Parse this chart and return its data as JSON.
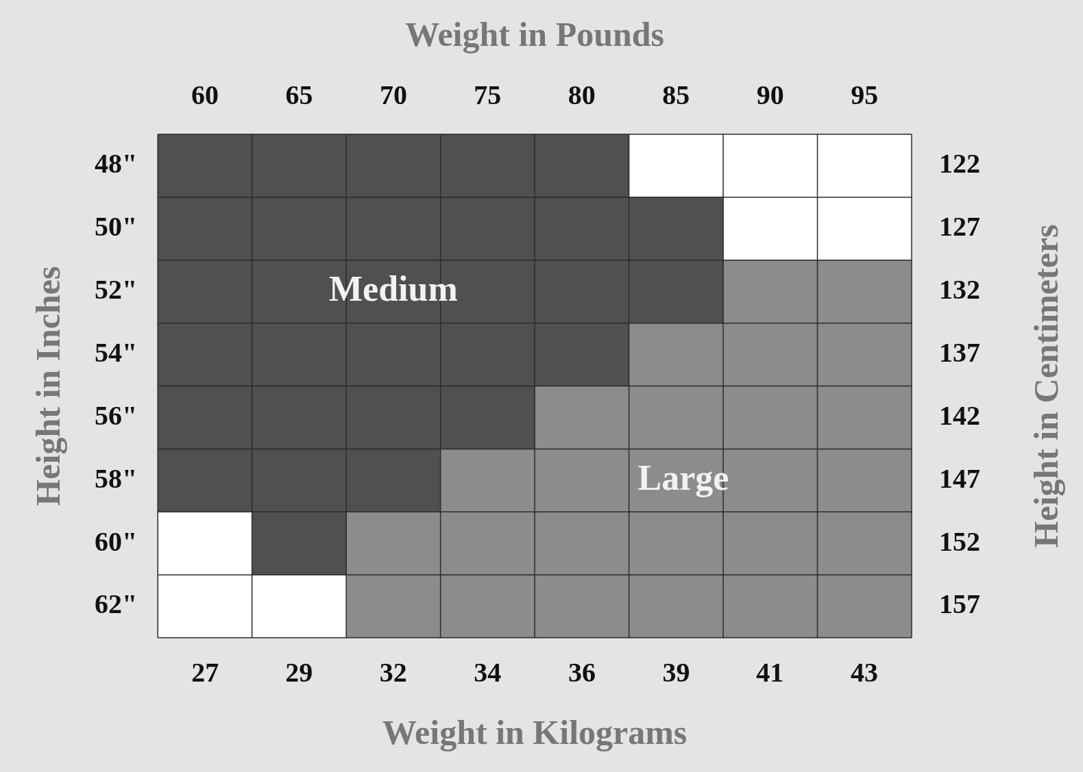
{
  "chart_data": {
    "type": "bar",
    "orientation": "horizontal",
    "xlabel": "Weight in Kilograms",
    "x2label": "Weight in Pounds",
    "ylabel": "Height in Inches",
    "y2label": "Height in Centimeters",
    "categories": [
      "48\"",
      "50\"",
      "52\"",
      "54\"",
      "56\"",
      "58\"",
      "60\"",
      "62\""
    ],
    "y2_categories": [
      "122",
      "127",
      "132",
      "137",
      "142",
      "147",
      "152",
      "157"
    ],
    "x2lim": [
      57.5,
      97.5
    ],
    "x2ticks": [
      60,
      65,
      70,
      75,
      80,
      85,
      90,
      95
    ],
    "xlim": [
      26.08,
      44.23
    ],
    "xticks": [
      {
        "value": 27.22,
        "label": "27"
      },
      {
        "value": 29.48,
        "label": "29"
      },
      {
        "value": 31.75,
        "label": "32"
      },
      {
        "value": 34.02,
        "label": "34"
      },
      {
        "value": 36.29,
        "label": "36"
      },
      {
        "value": 38.56,
        "label": "39"
      },
      {
        "value": 40.82,
        "label": "41"
      },
      {
        "value": 43.09,
        "label": "43"
      }
    ],
    "series": [
      {
        "name": "Medium",
        "color": "#505050",
        "axis": "x2",
        "base": [
          57.5,
          57.5,
          57.5,
          57.5,
          57.5,
          57.5,
          62.5,
          null
        ],
        "values": [
          25,
          30,
          30,
          25,
          20,
          15,
          5,
          null
        ]
      },
      {
        "name": "Large",
        "color": "#8c8c8c",
        "axis": "x2",
        "base": [
          null,
          null,
          87.5,
          82.5,
          77.5,
          72.5,
          67.5,
          67.5
        ],
        "values": [
          null,
          null,
          10,
          15,
          20,
          25,
          30,
          30
        ]
      }
    ],
    "grid": true,
    "legend": false
  }
}
